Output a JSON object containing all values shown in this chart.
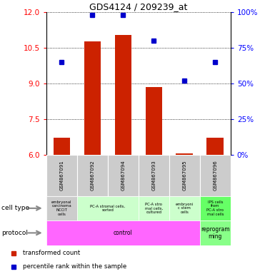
{
  "title": "GDS4124 / 209239_at",
  "samples": [
    "GSM867091",
    "GSM867092",
    "GSM867094",
    "GSM867093",
    "GSM867095",
    "GSM867096"
  ],
  "bar_values": [
    6.72,
    10.78,
    11.05,
    8.85,
    6.05,
    6.72
  ],
  "percentile_values": [
    65,
    98,
    98,
    80,
    52,
    65
  ],
  "ylim_left": [
    6,
    12
  ],
  "ylim_right": [
    0,
    100
  ],
  "yticks_left": [
    6,
    7.5,
    9,
    10.5,
    12
  ],
  "yticks_right": [
    0,
    25,
    50,
    75,
    100
  ],
  "bar_color": "#cc2200",
  "dot_color": "#0000cc",
  "cell_type_data": [
    [
      0,
      1,
      "#cccccc",
      "embryonal\ncarcinoma\nNCCIT\ncells"
    ],
    [
      1,
      3,
      "#ccffcc",
      "PC-A stromal cells,\nsorted"
    ],
    [
      3,
      4,
      "#ccffcc",
      "PC-A stro\nmal cells,\ncultured"
    ],
    [
      4,
      5,
      "#ccffcc",
      "embryoni\nc stem\ncells"
    ],
    [
      5,
      6,
      "#66ff66",
      "IPS cells\nfrom\nPC-A stro\nmal cells"
    ]
  ],
  "protocol_data": [
    [
      0,
      5,
      "#ff66ff",
      "control"
    ],
    [
      5,
      6,
      "#88ff88",
      "reprogram\nming"
    ]
  ],
  "label_bg": "#cccccc",
  "fig_width": 3.71,
  "fig_height": 3.84,
  "dpi": 100
}
